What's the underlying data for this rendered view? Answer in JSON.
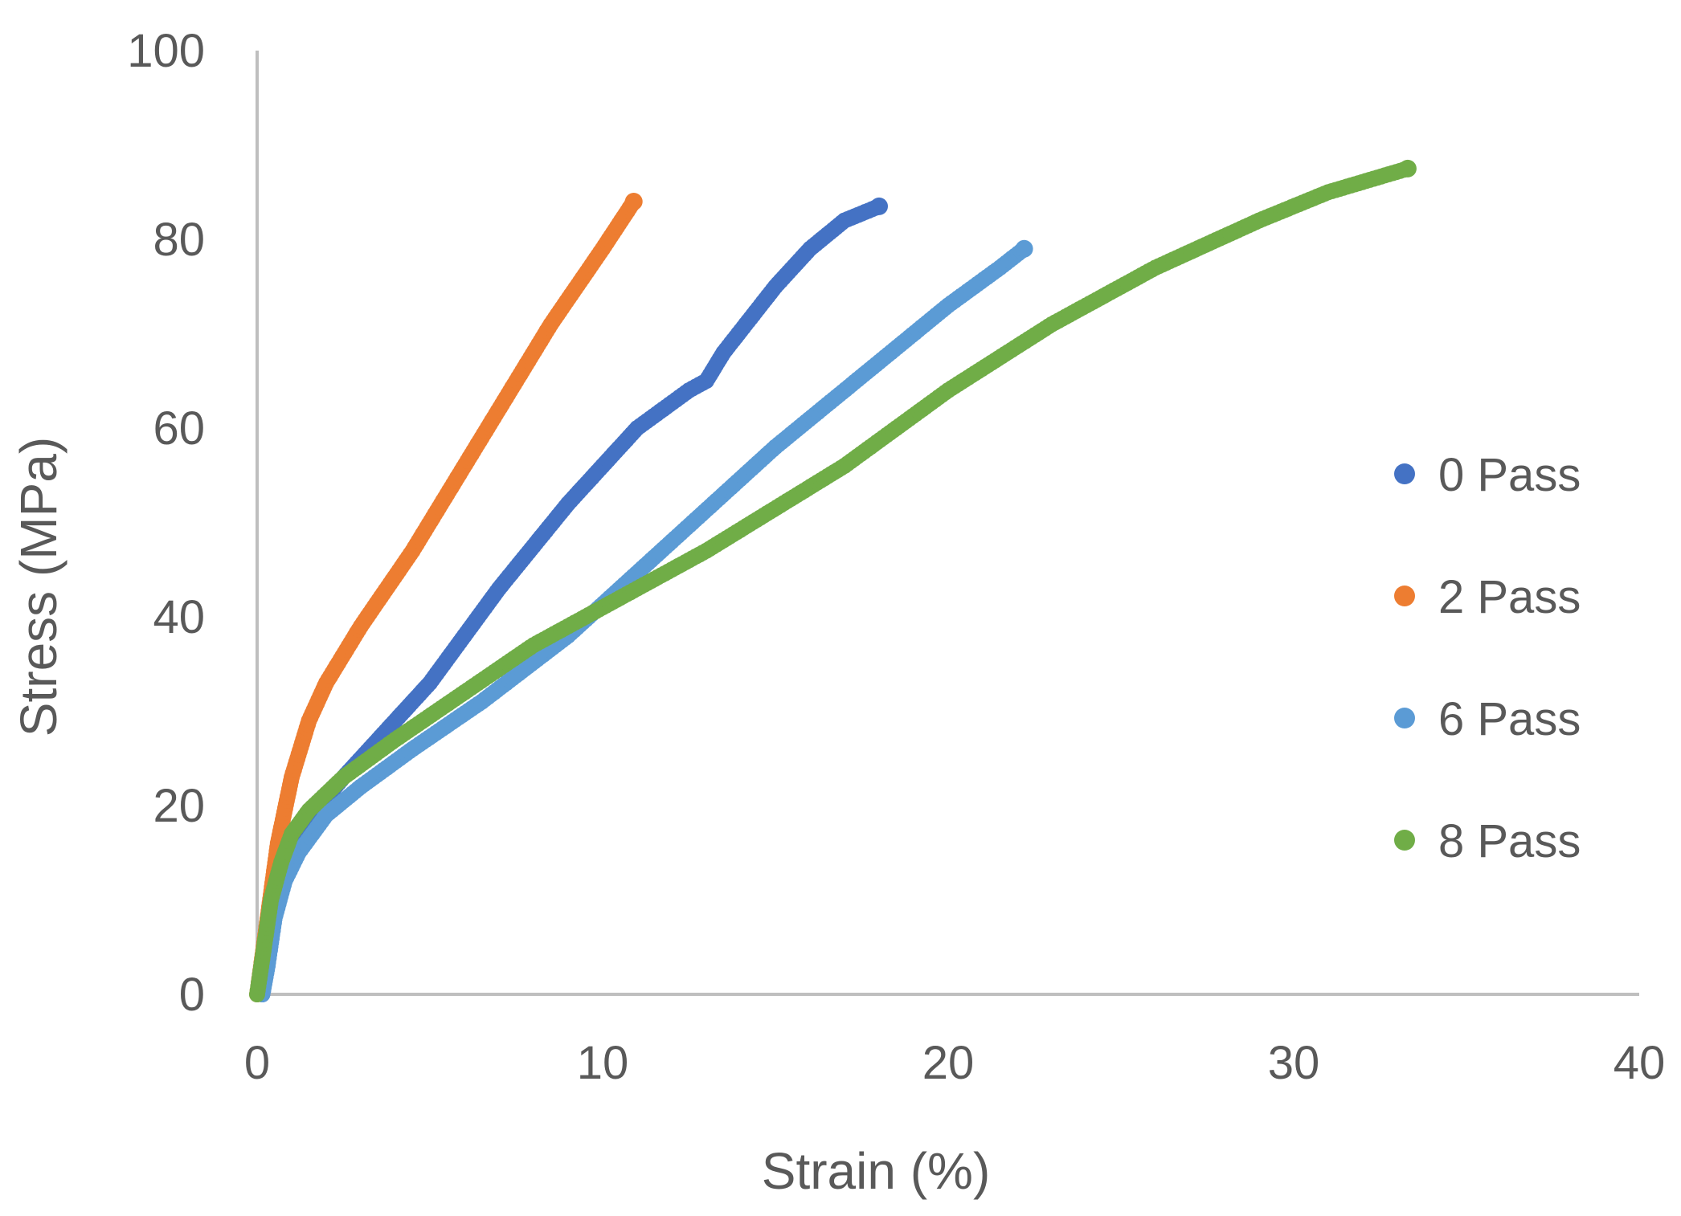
{
  "chart_data": {
    "type": "scatter",
    "title": "",
    "xlabel": "Strain (%)",
    "ylabel": "Stress (MPa)",
    "xlim": [
      0,
      40
    ],
    "ylim": [
      0,
      100
    ],
    "x_ticks": [
      "0",
      "10",
      "20",
      "30",
      "40"
    ],
    "y_ticks": [
      "0",
      "20",
      "40",
      "60",
      "80",
      "100"
    ],
    "grid": false,
    "legend_position": "right",
    "series": [
      {
        "name": "0 Pass",
        "color": "#4472C4",
        "x": [
          0.15,
          0.3,
          0.5,
          0.8,
          1.2,
          1.8,
          2.5,
          3.5,
          5,
          7,
          9,
          11,
          12.5,
          13,
          13.5,
          15,
          16,
          17,
          18
        ],
        "y": [
          0,
          3,
          8,
          13,
          17,
          20,
          23,
          27,
          33,
          43,
          52,
          60,
          64,
          65,
          68,
          75,
          79,
          82,
          83.5
        ]
      },
      {
        "name": "2 Pass",
        "color": "#ED7D31",
        "x": [
          0,
          0.3,
          0.6,
          1.0,
          1.5,
          2.0,
          3.0,
          4.5,
          6.5,
          8.5,
          10,
          10.9
        ],
        "y": [
          0,
          8,
          16,
          23,
          29,
          33,
          39,
          47,
          59,
          71,
          79,
          84
        ]
      },
      {
        "name": "6 Pass",
        "color": "#5B9BD5",
        "x": [
          0.15,
          0.3,
          0.5,
          0.8,
          1.2,
          2.0,
          3.0,
          4.5,
          6.5,
          9,
          12,
          15,
          18,
          20,
          21.5,
          22.2
        ],
        "y": [
          0,
          3,
          8,
          12,
          15,
          19,
          22,
          26,
          31,
          38,
          48,
          58,
          67,
          73,
          77,
          79
        ]
      },
      {
        "name": "8 Pass",
        "color": "#70AD47",
        "x": [
          0,
          0.2,
          0.4,
          0.7,
          1.0,
          1.5,
          2.5,
          4,
          6,
          8,
          10,
          13,
          17,
          20,
          23,
          26,
          29,
          31,
          33.3
        ],
        "y": [
          0,
          5,
          10,
          14,
          17,
          19.5,
          23,
          27,
          32,
          37,
          41,
          47,
          56,
          64,
          71,
          77,
          82,
          85,
          87.5
        ]
      }
    ]
  }
}
